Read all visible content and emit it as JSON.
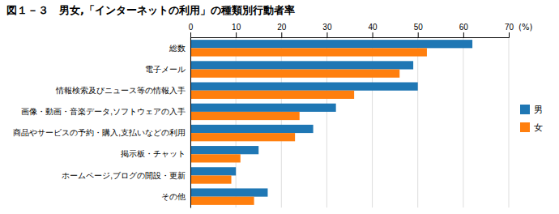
{
  "chart_data": {
    "type": "bar",
    "orientation": "horizontal",
    "title": "図１－３　男女,「インターネットの利用」の種類別行動者率",
    "categories": [
      "総数",
      "電子メール",
      "情報検索及びニュース等の情報入手",
      "画像・動画・音楽データ,ソフトウェアの入手",
      "商品やサービスの予約・購入,支払いなどの利用",
      "掲示板・チャット",
      "ホームページ,ブログの開設・更新",
      "その他"
    ],
    "series": [
      {
        "name": "男",
        "values": [
          62,
          49,
          50,
          32,
          27,
          15,
          10,
          17
        ]
      },
      {
        "name": "女",
        "values": [
          52,
          46,
          36,
          24,
          23,
          11,
          9,
          14
        ]
      }
    ],
    "xlabel": "(%)",
    "xlim": [
      0,
      70
    ],
    "xticks": [
      0,
      10,
      20,
      30,
      40,
      50,
      60,
      70
    ],
    "grid": true,
    "legend": "right"
  }
}
